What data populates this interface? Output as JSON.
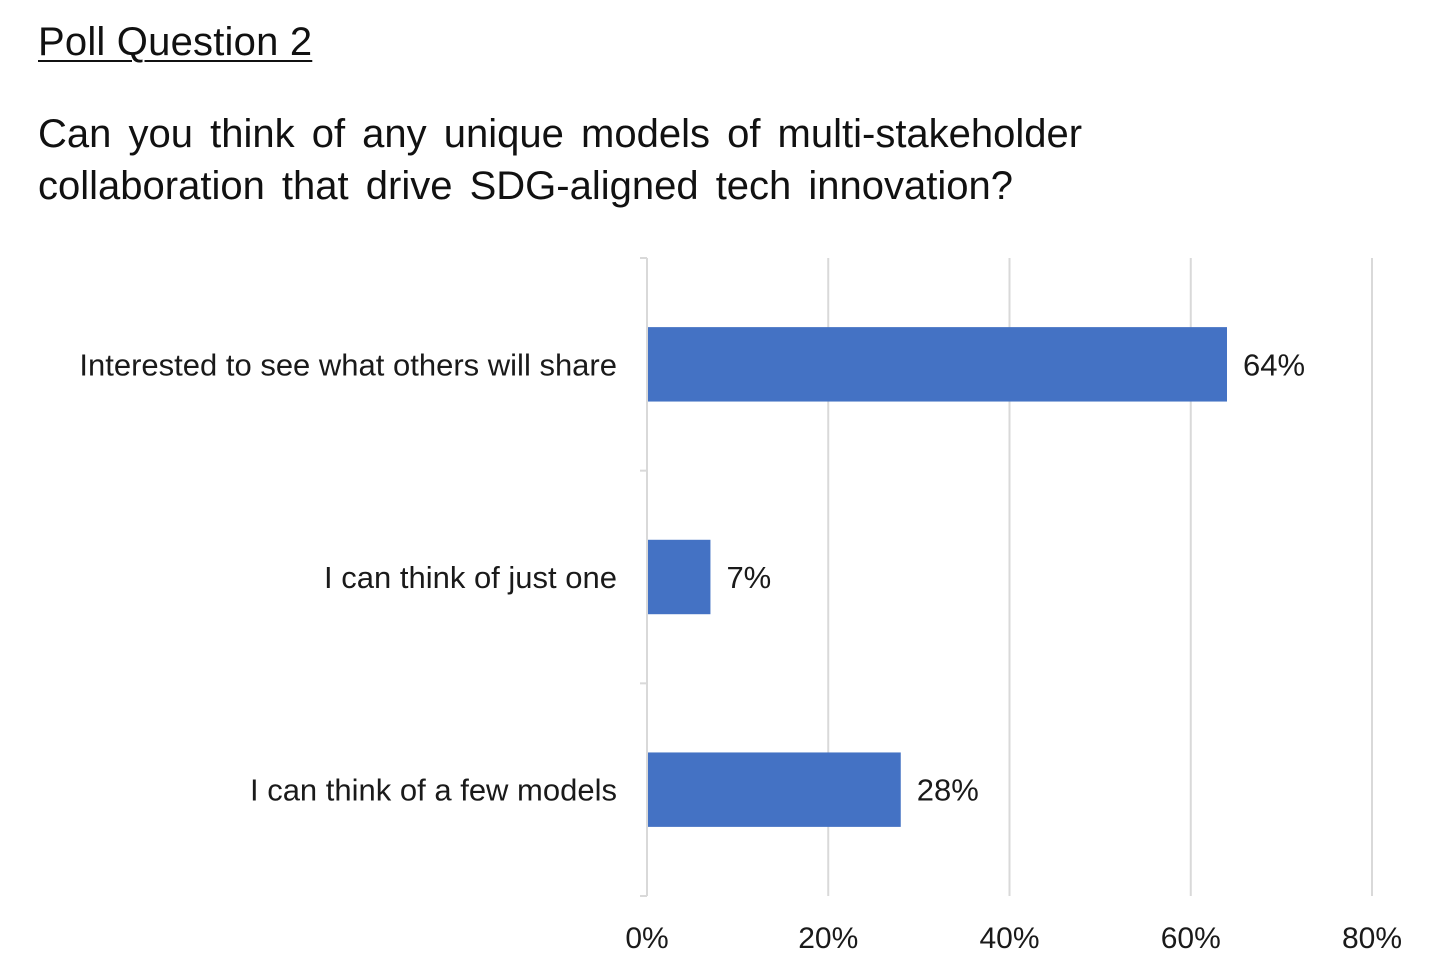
{
  "slide": {
    "heading": "Poll Question 2",
    "question": "Can you think of any unique models of multi-stakeholder collaboration that drive SDG-aligned tech innovation?"
  },
  "chart_data": {
    "type": "bar",
    "orientation": "horizontal",
    "categories": [
      "Interested to see what others will share",
      "I can think of just one",
      "I can think of a few models"
    ],
    "values": [
      64,
      7,
      28
    ],
    "data_labels": [
      "64%",
      "7%",
      "28%"
    ],
    "xlim": [
      0,
      80
    ],
    "x_ticks": [
      0,
      20,
      40,
      60,
      80
    ],
    "x_tick_labels": [
      "0%",
      "20%",
      "40%",
      "60%",
      "80%"
    ],
    "title": "",
    "xlabel": "",
    "ylabel": "",
    "grid": "vertical",
    "legend": "none",
    "bar_color": "#4472C4",
    "grid_color": "#D9D9D9",
    "axis_color": "#D9D9D9"
  }
}
